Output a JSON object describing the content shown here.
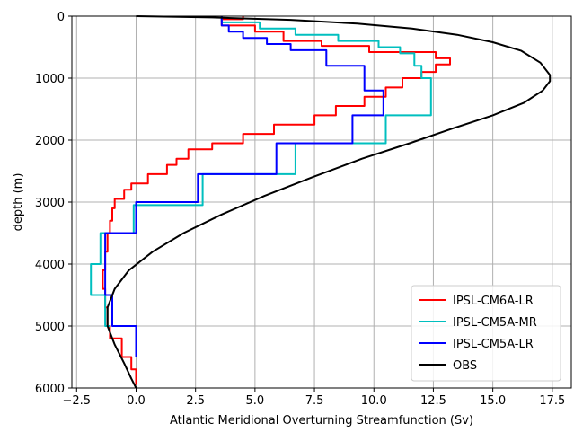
{
  "chart_data": {
    "type": "line",
    "xlabel": "Atlantic Meridional Overturning Streamfunction (Sv)",
    "ylabel": "depth (m)",
    "xlim": [
      -2.7,
      18.3
    ],
    "ylim": [
      6000,
      0
    ],
    "y_inverted": true,
    "grid": true,
    "legend_position": "lower-right",
    "x_ticks": [
      -2.5,
      0.0,
      2.5,
      5.0,
      7.5,
      10.0,
      12.5,
      15.0,
      17.5
    ],
    "x_tick_labels": [
      "−2.5",
      "0.0",
      "2.5",
      "5.0",
      "7.5",
      "10.0",
      "12.5",
      "15.0",
      "17.5"
    ],
    "y_ticks": [
      0,
      1000,
      2000,
      3000,
      4000,
      5000,
      6000
    ],
    "y_tick_labels": [
      "0",
      "1000",
      "2000",
      "3000",
      "4000",
      "5000",
      "6000"
    ],
    "series": [
      {
        "name": "IPSL-CM6A-LR",
        "color": "#ff0000",
        "step": true,
        "points": [
          [
            4.5,
            0
          ],
          [
            4.5,
            50
          ],
          [
            3.6,
            50
          ],
          [
            3.6,
            150
          ],
          [
            5.0,
            150
          ],
          [
            5.0,
            250
          ],
          [
            6.2,
            250
          ],
          [
            6.2,
            400
          ],
          [
            7.8,
            400
          ],
          [
            7.8,
            480
          ],
          [
            9.8,
            480
          ],
          [
            9.8,
            580
          ],
          [
            12.6,
            580
          ],
          [
            12.6,
            680
          ],
          [
            13.2,
            680
          ],
          [
            13.2,
            780
          ],
          [
            12.6,
            780
          ],
          [
            12.6,
            900
          ],
          [
            12.0,
            900
          ],
          [
            12.0,
            1000
          ],
          [
            11.2,
            1000
          ],
          [
            11.2,
            1150
          ],
          [
            10.5,
            1150
          ],
          [
            10.5,
            1300
          ],
          [
            9.6,
            1300
          ],
          [
            9.6,
            1450
          ],
          [
            8.4,
            1450
          ],
          [
            8.4,
            1600
          ],
          [
            7.5,
            1600
          ],
          [
            7.5,
            1750
          ],
          [
            5.8,
            1750
          ],
          [
            5.8,
            1900
          ],
          [
            4.5,
            1900
          ],
          [
            4.5,
            2050
          ],
          [
            3.2,
            2050
          ],
          [
            3.2,
            2150
          ],
          [
            2.2,
            2150
          ],
          [
            2.2,
            2300
          ],
          [
            1.7,
            2300
          ],
          [
            1.7,
            2400
          ],
          [
            1.3,
            2400
          ],
          [
            1.3,
            2550
          ],
          [
            0.5,
            2550
          ],
          [
            0.5,
            2700
          ],
          [
            -0.2,
            2700
          ],
          [
            -0.2,
            2800
          ],
          [
            -0.5,
            2800
          ],
          [
            -0.5,
            2950
          ],
          [
            -0.9,
            2950
          ],
          [
            -0.9,
            3100
          ],
          [
            -1.0,
            3100
          ],
          [
            -1.0,
            3300
          ],
          [
            -1.1,
            3300
          ],
          [
            -1.1,
            3500
          ],
          [
            -1.2,
            3500
          ],
          [
            -1.2,
            3800
          ],
          [
            -1.3,
            3800
          ],
          [
            -1.3,
            4100
          ],
          [
            -1.4,
            4100
          ],
          [
            -1.4,
            4400
          ],
          [
            -1.3,
            4400
          ],
          [
            -1.3,
            4700
          ],
          [
            -1.2,
            4700
          ],
          [
            -1.2,
            5000
          ],
          [
            -1.1,
            5000
          ],
          [
            -1.1,
            5200
          ],
          [
            -0.6,
            5200
          ],
          [
            -0.6,
            5500
          ],
          [
            -0.2,
            5500
          ],
          [
            -0.2,
            5700
          ],
          [
            0.0,
            5700
          ],
          [
            0.0,
            5950
          ]
        ]
      },
      {
        "name": "IPSL-CM5A-MR",
        "color": "#00bfbf",
        "step": true,
        "points": [
          [
            3.6,
            0
          ],
          [
            3.6,
            100
          ],
          [
            5.2,
            100
          ],
          [
            5.2,
            200
          ],
          [
            6.7,
            200
          ],
          [
            6.7,
            300
          ],
          [
            8.5,
            300
          ],
          [
            8.5,
            400
          ],
          [
            10.2,
            400
          ],
          [
            10.2,
            500
          ],
          [
            11.1,
            500
          ],
          [
            11.1,
            600
          ],
          [
            11.7,
            600
          ],
          [
            11.7,
            800
          ],
          [
            12.0,
            800
          ],
          [
            12.0,
            1000
          ],
          [
            12.4,
            1000
          ],
          [
            12.4,
            1200
          ],
          [
            12.4,
            1600
          ],
          [
            10.5,
            1600
          ],
          [
            10.5,
            2050
          ],
          [
            6.7,
            2050
          ],
          [
            6.7,
            2550
          ],
          [
            2.8,
            2550
          ],
          [
            2.8,
            3050
          ],
          [
            -0.1,
            3050
          ],
          [
            -0.1,
            3500
          ],
          [
            -1.5,
            3500
          ],
          [
            -1.5,
            4000
          ],
          [
            -1.9,
            4000
          ],
          [
            -1.9,
            4500
          ],
          [
            -1.3,
            4500
          ],
          [
            -1.3,
            5000
          ],
          [
            -1.1,
            5000
          ]
        ]
      },
      {
        "name": "IPSL-CM5A-LR",
        "color": "#0000ff",
        "step": true,
        "points": [
          [
            3.6,
            0
          ],
          [
            3.6,
            150
          ],
          [
            3.9,
            150
          ],
          [
            3.9,
            250
          ],
          [
            4.5,
            250
          ],
          [
            4.5,
            350
          ],
          [
            5.5,
            350
          ],
          [
            5.5,
            450
          ],
          [
            6.5,
            450
          ],
          [
            6.5,
            550
          ],
          [
            8.0,
            550
          ],
          [
            8.0,
            800
          ],
          [
            9.6,
            800
          ],
          [
            9.6,
            1200
          ],
          [
            10.4,
            1200
          ],
          [
            10.4,
            1600
          ],
          [
            9.1,
            1600
          ],
          [
            9.1,
            2050
          ],
          [
            5.9,
            2050
          ],
          [
            5.9,
            2550
          ],
          [
            2.6,
            2550
          ],
          [
            2.6,
            3000
          ],
          [
            0.0,
            3000
          ],
          [
            0.0,
            3500
          ],
          [
            -1.3,
            3500
          ],
          [
            -1.3,
            4500
          ],
          [
            -1.0,
            4500
          ],
          [
            -1.0,
            5000
          ],
          [
            0.0,
            5000
          ],
          [
            0.0,
            5500
          ]
        ]
      },
      {
        "name": "OBS",
        "color": "#000000",
        "step": false,
        "points": [
          [
            0.0,
            0
          ],
          [
            3.2,
            20
          ],
          [
            6.5,
            60
          ],
          [
            9.3,
            120
          ],
          [
            11.6,
            200
          ],
          [
            13.5,
            300
          ],
          [
            15.0,
            420
          ],
          [
            16.2,
            560
          ],
          [
            17.0,
            750
          ],
          [
            17.4,
            950
          ],
          [
            17.4,
            1050
          ],
          [
            17.1,
            1200
          ],
          [
            16.3,
            1400
          ],
          [
            15.0,
            1600
          ],
          [
            13.4,
            1800
          ],
          [
            11.5,
            2050
          ],
          [
            9.5,
            2300
          ],
          [
            7.4,
            2600
          ],
          [
            5.4,
            2900
          ],
          [
            3.6,
            3200
          ],
          [
            2.0,
            3500
          ],
          [
            0.7,
            3800
          ],
          [
            -0.3,
            4100
          ],
          [
            -0.9,
            4400
          ],
          [
            -1.2,
            4700
          ],
          [
            -1.2,
            5000
          ],
          [
            -0.9,
            5300
          ],
          [
            -0.5,
            5600
          ],
          [
            -0.2,
            5850
          ],
          [
            0.0,
            6000
          ]
        ]
      }
    ]
  }
}
